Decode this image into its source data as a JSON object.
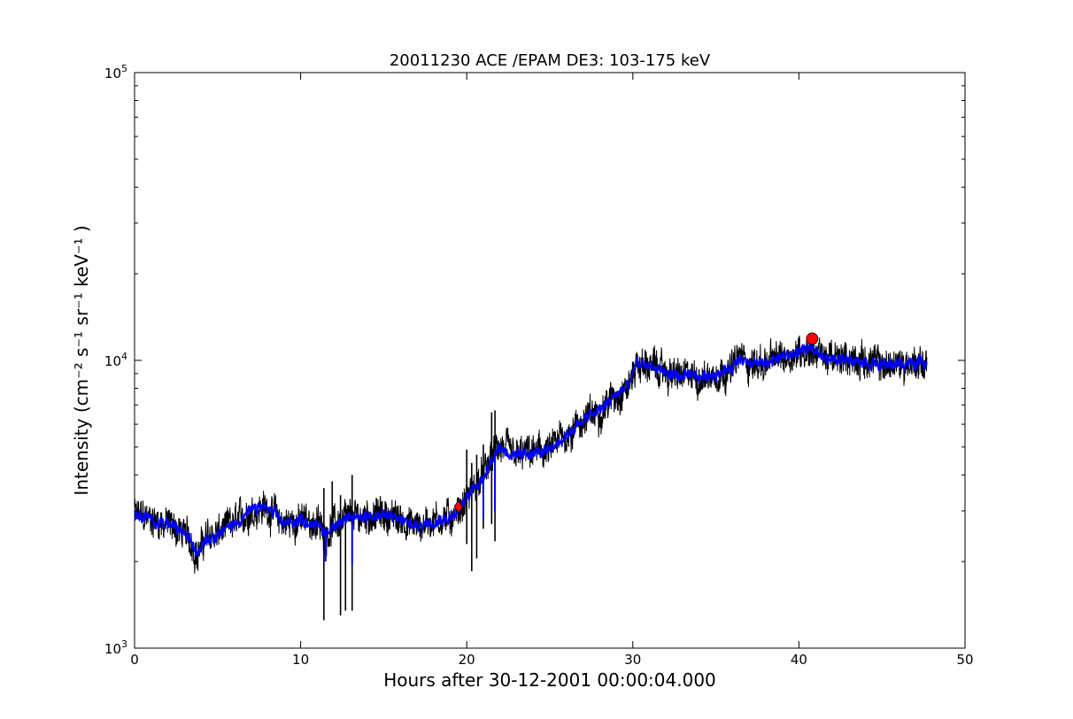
{
  "chart_data": {
    "type": "line",
    "title": "20011230 ACE /EPAM DE3: 103-175 keV",
    "xlabel": "Hours after 30-12-2001 00:00:04.000",
    "ylabel": "Intensity (cm⁻² s⁻¹ sr⁻¹ keV⁻¹ )",
    "xlim": [
      0,
      50
    ],
    "ylim": [
      1000,
      100000
    ],
    "yscale": "log",
    "grid": false,
    "x_ticks": [
      0,
      10,
      20,
      30,
      40,
      50
    ],
    "y_ticks": [
      {
        "value": 1000,
        "base": "10",
        "exp": "3"
      },
      {
        "value": 10000,
        "base": "10",
        "exp": "4"
      },
      {
        "value": 100000,
        "base": "10",
        "exp": "5"
      }
    ],
    "series": [
      {
        "color": "#000000",
        "style": "raw",
        "x": [
          0,
          1,
          2,
          3,
          3.5,
          3.8,
          4.2,
          5,
          6,
          7,
          7.8,
          8.5,
          9,
          10,
          11,
          11.5,
          12,
          13,
          14,
          15,
          16,
          17,
          18,
          19,
          19.5,
          20,
          20.5,
          21,
          21.5,
          22,
          23,
          24,
          25,
          25.5,
          26,
          27,
          28,
          29,
          29.8,
          30.2,
          31,
          32,
          33,
          34,
          35,
          36,
          36.5,
          37,
          38,
          39,
          40,
          40.8,
          41.5,
          42,
          43,
          44,
          45,
          46,
          47,
          47.7
        ],
        "values": [
          2900,
          2800,
          2700,
          2500,
          2300,
          2100,
          2400,
          2500,
          2700,
          3000,
          3100,
          2900,
          2700,
          2800,
          2700,
          2500,
          2700,
          2800,
          2900,
          2900,
          2800,
          2650,
          2800,
          2850,
          3000,
          3300,
          3700,
          3900,
          4600,
          5000,
          4600,
          4800,
          4800,
          5200,
          5500,
          6200,
          6700,
          7600,
          8200,
          9700,
          9600,
          9000,
          8800,
          8700,
          9000,
          9400,
          10400,
          9700,
          9800,
          10300,
          10700,
          11000,
          10400,
          10000,
          10200,
          10000,
          9600,
          9700,
          9800,
          9800
        ],
        "spikes": [
          {
            "x": 11.4,
            "low": 1250,
            "high": 3600
          },
          {
            "x": 11.9,
            "low": 2600,
            "high": 3800
          },
          {
            "x": 12.4,
            "low": 1300,
            "high": 3400
          },
          {
            "x": 12.7,
            "low": 1350,
            "high": 3200
          },
          {
            "x": 13.1,
            "low": 1350,
            "high": 4000
          },
          {
            "x": 20.0,
            "low": 2300,
            "high": 4900
          },
          {
            "x": 20.3,
            "low": 1850,
            "high": 4400
          },
          {
            "x": 20.6,
            "low": 2050,
            "high": 4700
          },
          {
            "x": 21.0,
            "low": 2600,
            "high": 5100
          },
          {
            "x": 21.5,
            "low": 2700,
            "high": 6600
          },
          {
            "x": 21.7,
            "low": 2350,
            "high": 6700
          }
        ]
      },
      {
        "color": "#0000ff",
        "style": "smoothed",
        "x": [
          0,
          1,
          2,
          3,
          3.5,
          3.8,
          4.2,
          5,
          6,
          7,
          7.8,
          8.5,
          9,
          10,
          11,
          11.5,
          12,
          13,
          14,
          15,
          16,
          17,
          18,
          19,
          19.5,
          20,
          20.5,
          21,
          21.5,
          22,
          23,
          24,
          25,
          25.5,
          26,
          27,
          28,
          29,
          29.8,
          30.2,
          31,
          32,
          33,
          34,
          35,
          36,
          36.5,
          37,
          38,
          39,
          40,
          40.8,
          41.5,
          42,
          43,
          44,
          45,
          46,
          47,
          47.7
        ],
        "values": [
          2900,
          2800,
          2700,
          2500,
          2300,
          2150,
          2400,
          2500,
          2700,
          3000,
          3100,
          2900,
          2700,
          2800,
          2700,
          2500,
          2700,
          2800,
          2900,
          2900,
          2800,
          2650,
          2800,
          2850,
          3000,
          3300,
          3700,
          3900,
          4600,
          5000,
          4600,
          4800,
          4800,
          5200,
          5500,
          6200,
          6700,
          7600,
          8200,
          9700,
          9600,
          9000,
          8800,
          8700,
          9000,
          9400,
          10400,
          9700,
          9800,
          10300,
          10700,
          11000,
          10400,
          10000,
          10200,
          10000,
          9600,
          9700,
          9800,
          9800
        ],
        "dips": [
          {
            "x": 11.5,
            "low": 2000
          },
          {
            "x": 13.1,
            "low": 1950
          },
          {
            "x": 21.0,
            "low": 2800
          },
          {
            "x": 21.7,
            "low": 3000
          }
        ]
      }
    ],
    "markers": [
      {
        "shape": "diamond",
        "x": 19.5,
        "y": 3100,
        "color": "#ff0000"
      },
      {
        "shape": "circle",
        "x": 40.8,
        "y": 11900,
        "color": "#ff0000"
      }
    ]
  }
}
